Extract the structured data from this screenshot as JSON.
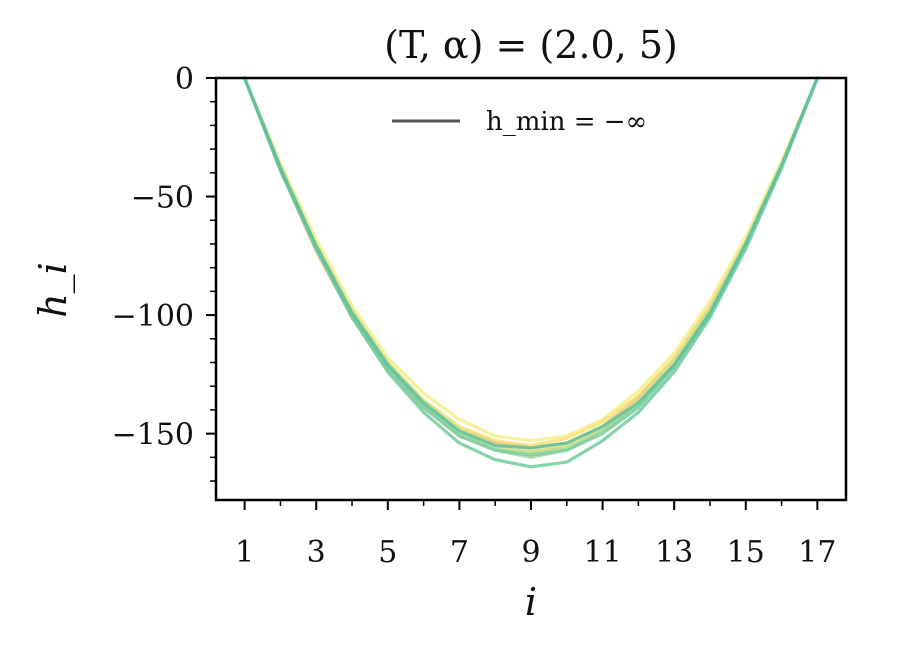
{
  "chart_data": {
    "type": "line",
    "title": "(T, α) = (2.0, 5)",
    "xlabel": "i",
    "ylabel": "h_i",
    "xlim": [
      0.2,
      17.8
    ],
    "ylim": [
      -178,
      0
    ],
    "x_ticks": [
      1,
      3,
      5,
      7,
      9,
      11,
      13,
      15,
      17
    ],
    "x_tick_labels": [
      "1",
      "3",
      "5",
      "7",
      "9",
      "11",
      "13",
      "15",
      "17"
    ],
    "y_ticks": [
      0,
      -50,
      -100,
      -150
    ],
    "y_tick_labels": [
      "0",
      "−50",
      "−100",
      "−150"
    ],
    "legend": {
      "entries": [
        {
          "label": "h_min = −∞",
          "color": "#555555"
        }
      ],
      "position": "top-center"
    },
    "x": [
      1,
      2,
      3,
      4,
      5,
      6,
      7,
      8,
      9,
      10,
      11,
      12,
      13,
      14,
      15,
      16,
      17
    ],
    "series": [
      {
        "color": "#f4ee8a",
        "values": [
          0,
          -36,
          -68,
          -96,
          -118,
          -133,
          -144,
          -151,
          -153,
          -151,
          -144,
          -132,
          -116,
          -94,
          -67,
          -35,
          0
        ]
      },
      {
        "color": "#f7e07a",
        "values": [
          0,
          -38,
          -70,
          -98,
          -120,
          -136,
          -147,
          -153,
          -155,
          -152,
          -145,
          -134,
          -118,
          -96,
          -69,
          -37,
          0
        ]
      },
      {
        "color": "#f5c27a",
        "values": [
          0,
          -39,
          -73,
          -101,
          -123,
          -139,
          -151,
          -157,
          -158,
          -156,
          -148,
          -136,
          -120,
          -98,
          -70,
          -37,
          0
        ]
      },
      {
        "color": "#e9c777",
        "values": [
          0,
          -38,
          -71,
          -99,
          -121,
          -137,
          -148,
          -154,
          -156,
          -154,
          -147,
          -135,
          -119,
          -97,
          -69,
          -37,
          0
        ]
      },
      {
        "color": "#dbe08a",
        "values": [
          0,
          -37,
          -70,
          -98,
          -120,
          -136,
          -148,
          -155,
          -157,
          -155,
          -148,
          -136,
          -119,
          -97,
          -69,
          -36,
          0
        ]
      },
      {
        "color": "#bfe19a",
        "values": [
          0,
          -38,
          -71,
          -99,
          -121,
          -137,
          -149,
          -156,
          -158,
          -156,
          -149,
          -138,
          -121,
          -99,
          -70,
          -37,
          0
        ]
      },
      {
        "color": "#9fd8a0",
        "values": [
          0,
          -38,
          -71,
          -100,
          -122,
          -138,
          -150,
          -157,
          -160,
          -157,
          -149,
          -138,
          -121,
          -99,
          -70,
          -37,
          0
        ]
      },
      {
        "color": "#7dcf9f",
        "values": [
          0,
          -38,
          -72,
          -100,
          -122,
          -139,
          -151,
          -157,
          -159,
          -157,
          -150,
          -139,
          -122,
          -100,
          -70,
          -37,
          0
        ]
      },
      {
        "color": "#6ecb9c",
        "values": [
          0,
          -39,
          -72,
          -101,
          -124,
          -141,
          -154,
          -161,
          -164,
          -162,
          -153,
          -141,
          -124,
          -101,
          -72,
          -38,
          0
        ]
      },
      {
        "color": "#5fc0a0",
        "values": [
          0,
          -38,
          -71,
          -99,
          -121,
          -137,
          -149,
          -155,
          -156,
          -154,
          -147,
          -137,
          -121,
          -99,
          -70,
          -37,
          0
        ]
      }
    ]
  }
}
